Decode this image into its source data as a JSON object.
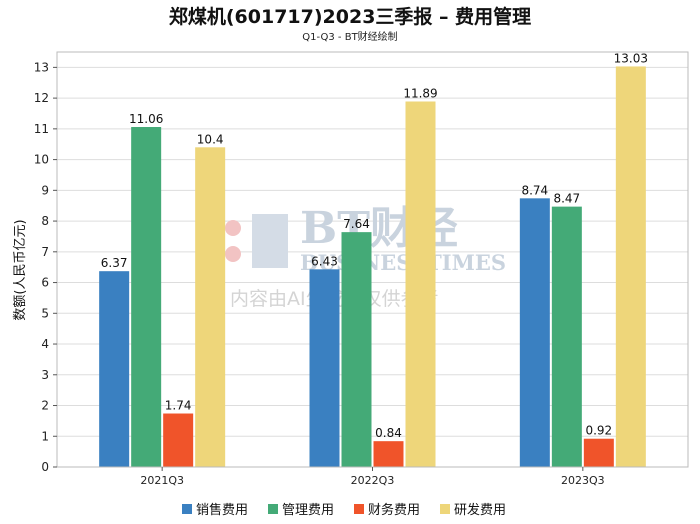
{
  "title": "郑煤机(601717)2023三季报 – 费用管理",
  "subtitle": "Q1-Q3 - BT财经绘制",
  "watermark": {
    "line1": "BT财经",
    "line2": "BUSINESSTIMES",
    "line3": "内容由AI生成，仅供参考"
  },
  "chart_data": {
    "type": "bar",
    "categories": [
      "2021Q3",
      "2022Q3",
      "2023Q3"
    ],
    "series": [
      {
        "name": "销售费用",
        "values": [
          6.37,
          6.43,
          8.74
        ],
        "color": "#3a80c1"
      },
      {
        "name": "管理费用",
        "values": [
          11.06,
          7.64,
          8.47
        ],
        "color": "#44aa77"
      },
      {
        "name": "财务费用",
        "values": [
          1.74,
          0.84,
          0.92
        ],
        "color": "#f0542a"
      },
      {
        "name": "研发费用",
        "values": [
          10.4,
          11.89,
          13.03
        ],
        "color": "#eed67a"
      }
    ],
    "xlabel": "",
    "ylabel": "数额(人民币亿元)",
    "ylim": [
      0,
      13.5
    ],
    "yticks": [
      0,
      1,
      2,
      3,
      4,
      5,
      6,
      7,
      8,
      9,
      10,
      11,
      12,
      13
    ],
    "grid": true,
    "legend": "bottom"
  }
}
